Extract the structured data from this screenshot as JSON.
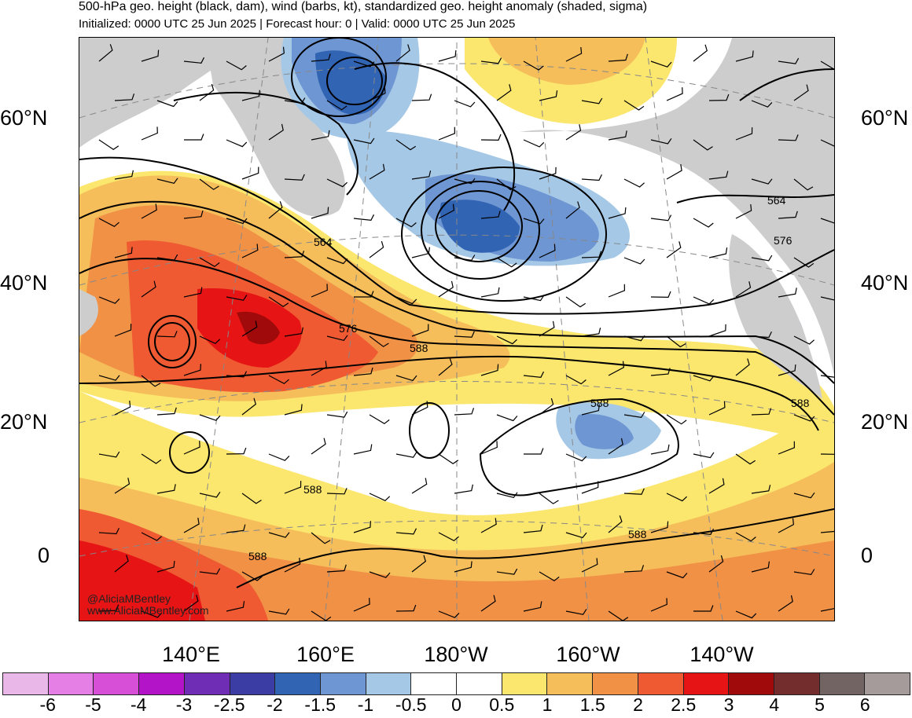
{
  "header": {
    "title": "500-hPa geo. height (black, dam), wind (barbs, kt), standardized geo. height anomaly (shaded, sigma)",
    "subtitle": "Initialized: 0000 UTC 25 Jun 2025 | Forecast hour: 0 | Valid: 0000 UTC 25 Jun 2025"
  },
  "map": {
    "lat_labels": [
      "60°N",
      "40°N",
      "20°N",
      "0"
    ],
    "lon_labels": [
      "140°E",
      "160°E",
      "180°W",
      "160°W",
      "140°W"
    ],
    "contour_labels": [
      "564",
      "564",
      "576",
      "576",
      "588",
      "588",
      "588",
      "588",
      "588",
      "588"
    ],
    "credit": [
      "@AliciaMBentley",
      "www.AliciaMBentley.com"
    ],
    "colors": {
      "land": "#cdcdcd",
      "coast": "#555555",
      "contour": "#000000",
      "grid": "#888888"
    }
  },
  "colorbar": {
    "labels": [
      "-6",
      "-5",
      "-4",
      "-3",
      "-2.5",
      "-2",
      "-1.5",
      "-1",
      "-0.5",
      "0",
      "0.5",
      "1",
      "1.5",
      "2",
      "2.5",
      "3",
      "4",
      "5",
      "6"
    ],
    "colors": [
      "#e9b8e9",
      "#e57ee5",
      "#d64fd6",
      "#b414c8",
      "#6e2db4",
      "#3c3ca5",
      "#3264b4",
      "#6e96d2",
      "#a5c8e6",
      "#ffffff",
      "#ffffff",
      "#fbe66e",
      "#f5be5a",
      "#f09146",
      "#f05a32",
      "#e61414",
      "#a00a0a",
      "#732d2d",
      "#736464",
      "#a59b9b"
    ]
  }
}
